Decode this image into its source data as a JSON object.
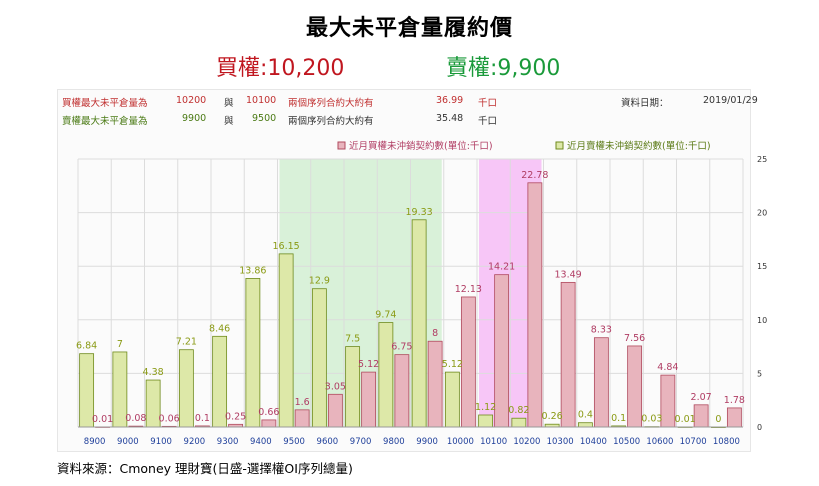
{
  "title": "最大未平倉量履約價",
  "subtitle": {
    "call_label": "買權:10,200",
    "put_label": "賣權:9,900"
  },
  "info": {
    "call_row": {
      "label": "買權最大未平倉量為",
      "strike1": "10200",
      "and": "與",
      "strike2": "10100",
      "desc": "兩個序列合約大約有",
      "value": "36.99",
      "unit": "千口"
    },
    "put_row": {
      "label": "賣權最大未平倉量為",
      "strike1": "9900",
      "and": "與",
      "strike2": "9500",
      "desc": "兩個序列合約大約有",
      "value": "35.48",
      "unit": "千口"
    },
    "date_label": "資料日期：",
    "date_value": "2019/01/29"
  },
  "source": "資料來源：Cmoney 理財寶(日盛-選擇權OI序列總量)",
  "colors": {
    "call_fill": "#e8b4bd",
    "call_stroke": "#b04a5e",
    "put_fill": "#dde8a8",
    "put_stroke": "#6f8a1c",
    "call_label": "#b03c63",
    "put_label": "#8a9a14",
    "green_band": "#d9f1d9",
    "magenta_band": "#f7c6f7",
    "xtick": "#1f3f9a"
  },
  "chart_data": {
    "type": "bar",
    "categories": [
      "8900",
      "9000",
      "9100",
      "9200",
      "9300",
      "9400",
      "9500",
      "9600",
      "9700",
      "9800",
      "9900",
      "10000",
      "10100",
      "10200",
      "10300",
      "10400",
      "10500",
      "10600",
      "10700",
      "10800"
    ],
    "series": [
      {
        "name": "近月買權未沖銷契約數(單位:千口)",
        "values": [
          0.01,
          0.08,
          0.06,
          0.1,
          0.25,
          0.66,
          1.6,
          3.05,
          5.12,
          6.75,
          8,
          12.13,
          14.21,
          22.78,
          13.49,
          8.33,
          7.56,
          4.84,
          2.07,
          1.78
        ]
      },
      {
        "name": "近月賣權未沖銷契約數(單位:千口)",
        "values": [
          6.84,
          7,
          4.38,
          7.21,
          8.46,
          13.86,
          16.15,
          12.9,
          7.5,
          9.74,
          19.33,
          5.12,
          1.12,
          0.82,
          0.26,
          0.4,
          0.1,
          0.03,
          0.01,
          0
        ]
      }
    ],
    "call_labels": [
      "0.01",
      "0.08",
      "0.06",
      "0.1",
      "0.25",
      "0.66",
      "1.6",
      "3.05",
      "5.12",
      "6.75",
      "8",
      "12.13",
      "14.21",
      "22.78",
      "13.49",
      "8.33",
      "7.56",
      "4.84",
      "2.07",
      "1.78"
    ],
    "put_labels": [
      "6.84",
      "7",
      "4.38",
      "7.21",
      "8.46",
      "13.86",
      "16.15",
      "12.9",
      "7.5",
      "9.74",
      "19.33",
      "5.12",
      "1.12",
      "0.82",
      "0.26",
      "0.4",
      "0.1",
      "0.03",
      "0.01",
      "0"
    ],
    "yticks": [
      "0",
      "5",
      "10",
      "15",
      "20",
      "25"
    ],
    "ylim": [
      0,
      25
    ],
    "y_axis_side": "right",
    "grid": true,
    "legend_position": "top-right",
    "highlight_ranges": [
      {
        "from": "9500",
        "to": "9900",
        "color": "green"
      },
      {
        "from": "10100",
        "to": "10200",
        "color": "magenta"
      }
    ]
  }
}
